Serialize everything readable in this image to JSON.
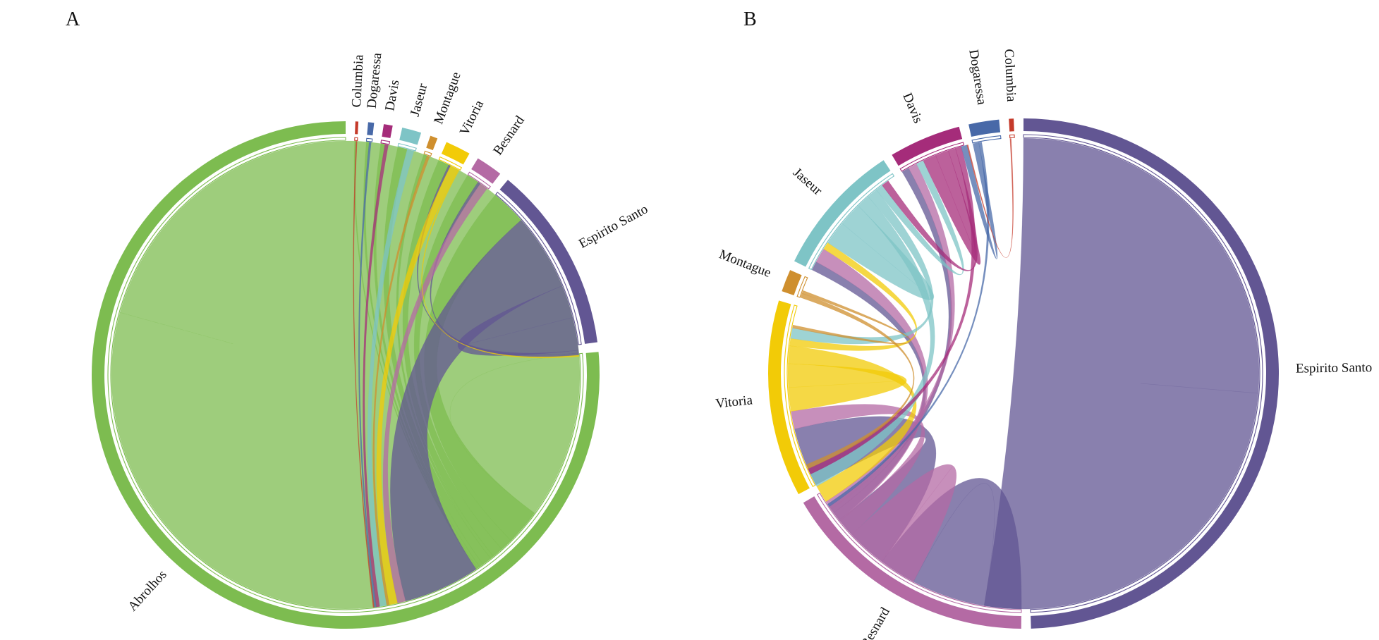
{
  "chart_data": [
    {
      "type": "chord",
      "panel": "A",
      "unit": "%",
      "sectors": [
        {
          "name": "Abrolhos",
          "color": "#7dbc50",
          "value": 80.9
        },
        {
          "name": "Espirito Santo",
          "color": "#625693",
          "value": 12.6
        },
        {
          "name": "Besnard",
          "color": "#b46aa4",
          "value": 1.8
        },
        {
          "name": "Vitoria",
          "color": "#f2cb07",
          "value": 1.7
        },
        {
          "name": "Montague",
          "color": "#cf8f2e",
          "value": 0.5
        },
        {
          "name": "Jaseur",
          "color": "#7ec4c6",
          "value": 1.3
        },
        {
          "name": "Davis",
          "color": "#a52c7a",
          "value": 0.6
        },
        {
          "name": "Dogaressa",
          "color": "#4869a8",
          "value": 0.4
        },
        {
          "name": "Columbia",
          "color": "#c53a2a",
          "value": 0.2
        }
      ],
      "flows": [
        {
          "from": "Abrolhos",
          "to": "Abrolhos",
          "value": 59.0
        },
        {
          "from": "Abrolhos",
          "to": "Espirito Santo",
          "value": 2.6
        },
        {
          "from": "Abrolhos",
          "to": "Besnard",
          "value": 0.9
        },
        {
          "from": "Abrolhos",
          "to": "Vitoria",
          "value": 0.8
        },
        {
          "from": "Abrolhos",
          "to": "Montague",
          "value": 0.25
        },
        {
          "from": "Abrolhos",
          "to": "Jaseur",
          "value": 0.7
        },
        {
          "from": "Abrolhos",
          "to": "Davis",
          "value": 0.3
        },
        {
          "from": "Abrolhos",
          "to": "Dogaressa",
          "value": 0.2
        },
        {
          "from": "Abrolhos",
          "to": "Columbia",
          "value": 0.1
        },
        {
          "from": "Espirito Santo",
          "to": "Abrolhos",
          "value": 5.6
        },
        {
          "from": "Espirito Santo",
          "to": "Espirito Santo",
          "value": 2.4
        },
        {
          "from": "Espirito Santo",
          "to": "Besnard",
          "value": 0.2
        },
        {
          "from": "Espirito Santo",
          "to": "Vitoria",
          "value": 0.15
        },
        {
          "from": "Besnard",
          "to": "Abrolhos",
          "value": 0.6
        },
        {
          "from": "Vitoria",
          "to": "Abrolhos",
          "value": 0.6
        },
        {
          "from": "Vitoria",
          "to": "Espirito Santo",
          "value": 0.1
        },
        {
          "from": "Montague",
          "to": "Abrolhos",
          "value": 0.2
        },
        {
          "from": "Jaseur",
          "to": "Abrolhos",
          "value": 0.5
        },
        {
          "from": "Davis",
          "to": "Abrolhos",
          "value": 0.25
        },
        {
          "from": "Dogaressa",
          "to": "Abrolhos",
          "value": 0.15
        },
        {
          "from": "Columbia",
          "to": "Abrolhos",
          "value": 0.08
        }
      ]
    },
    {
      "type": "chord",
      "panel": "B",
      "unit": "%",
      "sectors": [
        {
          "name": "Espirito Santo",
          "color": "#625693",
          "value": 48.9
        },
        {
          "name": "Besnard",
          "color": "#b46aa4",
          "value": 16.2
        },
        {
          "name": "Vitoria",
          "color": "#f2cb07",
          "value": 12.3
        },
        {
          "name": "Montague",
          "color": "#cf8f2e",
          "value": 1.4
        },
        {
          "name": "Jaseur",
          "color": "#7ec4c6",
          "value": 8.4
        },
        {
          "name": "Davis",
          "color": "#a52c7a",
          "value": 4.5
        },
        {
          "name": "Dogaressa",
          "color": "#4869a8",
          "value": 1.9
        },
        {
          "name": "Columbia",
          "color": "#c53a2a",
          "value": 0.3
        }
      ],
      "flows": [
        {
          "from": "Espirito Santo",
          "to": "Espirito Santo",
          "value": 26.0
        },
        {
          "from": "Espirito Santo",
          "to": "Besnard",
          "value": 7.5
        },
        {
          "from": "Espirito Santo",
          "to": "Vitoria",
          "value": 4.0
        },
        {
          "from": "Espirito Santo",
          "to": "Jaseur",
          "value": 0.6
        },
        {
          "from": "Espirito Santo",
          "to": "Davis",
          "value": 0.5
        },
        {
          "from": "Besnard",
          "to": "Besnard",
          "value": 2.6
        },
        {
          "from": "Besnard",
          "to": "Vitoria",
          "value": 1.2
        },
        {
          "from": "Besnard",
          "to": "Jaseur",
          "value": 1.0
        },
        {
          "from": "Besnard",
          "to": "Davis",
          "value": 0.6
        },
        {
          "from": "Vitoria",
          "to": "Vitoria",
          "value": 1.6
        },
        {
          "from": "Vitoria",
          "to": "Besnard",
          "value": 1.2
        },
        {
          "from": "Vitoria",
          "to": "Jaseur",
          "value": 0.5
        },
        {
          "from": "Jaseur",
          "to": "Jaseur",
          "value": 1.6
        },
        {
          "from": "Jaseur",
          "to": "Besnard",
          "value": 0.9
        },
        {
          "from": "Jaseur",
          "to": "Vitoria",
          "value": 0.7
        },
        {
          "from": "Jaseur",
          "to": "Davis",
          "value": 0.5
        },
        {
          "from": "Davis",
          "to": "Davis",
          "value": 0.9
        },
        {
          "from": "Davis",
          "to": "Jaseur",
          "value": 0.5
        },
        {
          "from": "Davis",
          "to": "Besnard",
          "value": 0.4
        },
        {
          "from": "Montague",
          "to": "Besnard",
          "value": 0.3
        },
        {
          "from": "Montague",
          "to": "Vitoria",
          "value": 0.2
        },
        {
          "from": "Dogaressa",
          "to": "Davis",
          "value": 0.4
        },
        {
          "from": "Dogaressa",
          "to": "Espirito Santo",
          "value": 0.2
        },
        {
          "from": "Columbia",
          "to": "Davis",
          "value": 0.08
        }
      ]
    }
  ]
}
